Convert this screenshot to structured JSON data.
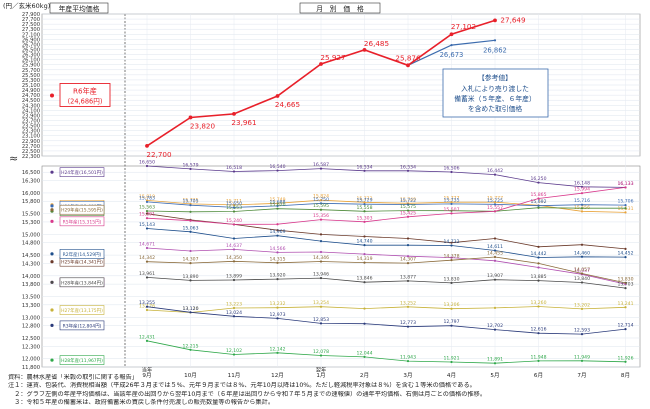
{
  "chart_data": {
    "type": "line",
    "unit_label": "(円／玄米60kg)",
    "left_panel_title": "年産平均価格",
    "main_title": "月　別　価　格",
    "x_axis": [
      {
        "label": "9月",
        "sub": "当年"
      },
      {
        "label": "10月",
        "sub": ""
      },
      {
        "label": "11月",
        "sub": ""
      },
      {
        "label": "12月",
        "sub": ""
      },
      {
        "label": "1月",
        "sub": "翌年"
      },
      {
        "label": "2月",
        "sub": ""
      },
      {
        "label": "3月",
        "sub": ""
      },
      {
        "label": "4月",
        "sub": ""
      },
      {
        "label": "5月",
        "sub": ""
      },
      {
        "label": "6月",
        "sub": ""
      },
      {
        "label": "7月",
        "sub": ""
      },
      {
        "label": "8月",
        "sub": ""
      }
    ],
    "upper_ticks": [
      22300,
      22700,
      23100,
      23500,
      23900,
      24300,
      24700,
      25100,
      25500,
      25900,
      26300,
      26700,
      27100,
      27500,
      27900
    ],
    "upper_ticks_odd": [
      22500,
      22900,
      23300,
      23700,
      24100,
      24500,
      24900,
      25300,
      25700,
      26100,
      26500,
      26900,
      27300,
      27700
    ],
    "lower_ticks": [
      12000,
      12500,
      13000,
      13500,
      14000,
      14500,
      15000,
      15500,
      16000,
      16500
    ],
    "lower_ticks_odd": [
      11800,
      12300,
      12800,
      13300,
      13800,
      14300,
      14800,
      15300,
      15800,
      16300
    ],
    "series_upper": [
      {
        "name": "R6年産",
        "color": "#e8202a",
        "annual": "(24,686円)",
        "annual_value": 24686,
        "values": [
          22700,
          23820,
          23961,
          24665,
          25927,
          26485,
          25876,
          27102,
          27649
        ],
        "labels": [
          "22,700",
          "23,820",
          "23,961",
          "24,665",
          "25,927",
          "26,485",
          "25,876",
          "27,102",
          "27,649"
        ]
      },
      {
        "name": "参考値",
        "color": "#3c6cae",
        "values": [
          null,
          null,
          null,
          null,
          null,
          null,
          25876,
          26673,
          26862
        ],
        "labels": [
          "",
          "",
          "",
          "",
          "",
          "",
          "",
          "26,673",
          "26,862"
        ]
      }
    ],
    "reference_note": {
      "title": "【参考値】",
      "lines": [
        "入札により売り渡した",
        "備蓄米（５年産、６年産）",
        "を含めた取引価格"
      ]
    },
    "series_lower": [
      {
        "name": "H24年産",
        "annual": "(16,501円)",
        "annual_value": 16501,
        "color": "#5b3a8c",
        "values": [
          16650,
          16579,
          16518,
          16540,
          16587,
          16534,
          16534,
          16506,
          16442,
          16250,
          16148,
          16133
        ],
        "labels": [
          "16,650",
          "16,579",
          "16,518",
          "16,540",
          "16,587",
          "16,534",
          "16,534",
          "16,506",
          "16,442",
          "16,250",
          "16,148",
          "16,133"
        ]
      },
      {
        "name": "R6年産",
        "annual": "(15,713円)",
        "annual_value": 15713,
        "color": "#e8a33a",
        "values": [
          15819,
          15735,
          15711,
          15749,
          15824,
          15773,
          15749,
          15777,
          15777,
          15702,
          15556,
          15531
        ],
        "labels": [
          "15,819",
          "15,735",
          "15,711",
          "15,749",
          "15,824",
          "15,773",
          "15,749",
          "15,777",
          "15,777",
          "15,702",
          "15,556",
          "15,531"
        ]
      },
      {
        "name": "H30年産",
        "annual": "(15,688円)",
        "annual_value": 15688,
        "color": "#3b6bb3",
        "values": [
          15783,
          15705,
          15650,
          15688,
          15750,
          15729,
          15722,
          15735,
          15725,
          15692,
          15716,
          15706
        ],
        "labels": [
          "15,783",
          "15,705",
          "15,650",
          "15,688",
          "15,750",
          "15,729",
          "15,722",
          "15,735",
          "15,725",
          "15,692",
          "15,716",
          "15,706"
        ]
      },
      {
        "name": "H25年産",
        "annual": "(14,341円)",
        "annual_value": 14341,
        "color": "#6b3a2a",
        "values": [
          15500,
          15350,
          15240,
          15100,
          15000,
          14950,
          14900,
          14800,
          14900,
          14700,
          14750,
          14650
        ],
        "labels": [
          "",
          "",
          "",
          "",
          "",
          "",
          "",
          "",
          "",
          "",
          "",
          ""
        ]
      },
      {
        "name": "H26年産",
        "annual": "(15,560円)",
        "annual_value": 15560,
        "color": "#4d8a3a",
        "values": [
          15563,
          15545,
          15553,
          15620,
          15595,
          15558,
          15575,
          15571,
          15557,
          15643,
          15631,
          15631
        ],
        "labels": [
          "15,563",
          "",
          "15,553",
          "15,620",
          "15,595",
          "15,558",
          "15,575",
          "",
          "",
          "",
          "",
          ""
        ]
      },
      {
        "name": "R5年産",
        "annual": "(15,315円)",
        "annual_value": 15315,
        "color": "#d83a8c",
        "values": [
          15391,
          15330,
          15240,
          15245,
          15356,
          15303,
          15425,
          15507,
          15557,
          15865,
          15994,
          16133
        ],
        "labels": [
          "15,391",
          "",
          "15,240",
          "",
          "15,356",
          "15,303",
          "15,425",
          "15,507",
          "15,557",
          "15,865",
          "15,994",
          "16,133"
        ]
      },
      {
        "name": "R2年産",
        "annual": "(14,529円)",
        "annual_value": 14529,
        "color": "#1f4f8c",
        "values": [
          15143,
          15063,
          14900,
          14969,
          14837,
          14740,
          14740,
          14732,
          14611,
          14442,
          14460,
          14452
        ],
        "labels": [
          "15,143",
          "15,063",
          "",
          "14,969",
          "",
          "14,740",
          "",
          "14,732",
          "14,611",
          "14,442",
          "14,460",
          "14,452"
        ]
      },
      {
        "name": "R4年産",
        "annual": "(13,844円)",
        "annual_value": 13844,
        "color": "#b04fb0",
        "values": [
          14671,
          14600,
          14637,
          14566,
          14574,
          14524,
          14473,
          14440,
          14363,
          14200,
          14037,
          13800
        ],
        "labels": [
          "14,671",
          "",
          "14,637",
          "14,566",
          "",
          "",
          "",
          "",
          "",
          "",
          "14,037",
          ""
        ]
      },
      {
        "name": "H29年産",
        "annual": "(15,595円)",
        "annual_value": 15595,
        "color": "#8a6a3a",
        "values": [
          14342,
          14307,
          14350,
          14315,
          14346,
          14319,
          14307,
          14378,
          14455,
          14300,
          14057,
          13830
        ],
        "labels": [
          "14,342",
          "14,307",
          "14,350",
          "14,315",
          "14,346",
          "14,319",
          "14,307",
          "14,378",
          "14,455",
          "",
          "14,057",
          "13,830"
        ]
      },
      {
        "name": "H27年産",
        "annual": "(13,175円)",
        "annual_value": 13175,
        "color": "#c7b23a",
        "values": [
          13176,
          13116,
          13223,
          13232,
          13254,
          13210,
          13252,
          13206,
          13226,
          13260,
          13202,
          13241
        ],
        "labels": [
          "13,176",
          "13,116",
          "13,223",
          "13,232",
          "13,254",
          "",
          "13,252",
          "13,206",
          "",
          "13,260",
          "13,202",
          "13,241"
        ]
      },
      {
        "name": "H28年産",
        "annual": "(13,844円)",
        "annual_value": 13844,
        "color": "#4a4a4a",
        "values": [
          13961,
          13890,
          13899,
          13920,
          13946,
          13846,
          13877,
          13830,
          13907,
          13885,
          13840,
          13703
        ],
        "labels": [
          "13,961",
          "13,890",
          "13,899",
          "13,920",
          "13,946",
          "13,846",
          "13,877",
          "13,830",
          "13,907",
          "13,885",
          "13,840",
          "13,703"
        ]
      },
      {
        "name": "R3年産",
        "annual": "(12,804円)",
        "annual_value": 12804,
        "color": "#2a3a7a",
        "values": [
          13255,
          13120,
          13024,
          12973,
          12853,
          12845,
          12773,
          12797,
          12702,
          12616,
          12593,
          12714
        ],
        "labels": [
          "13,255",
          "13,120",
          "13,024",
          "12,973",
          "12,853",
          "",
          "12,773",
          "12,797",
          "12,702",
          "12,616",
          "12,593",
          "12,714"
        ]
      },
      {
        "name": "H28年産",
        "annual": "(11,967円)",
        "annual_value": 11967,
        "color": "#2fa84a",
        "values": [
          12431,
          12215,
          12102,
          12142,
          12078,
          12044,
          11943,
          11921,
          11891,
          11948,
          11949,
          11926
        ],
        "labels": [
          "12,431",
          "12,215",
          "12,102",
          "12,142",
          "12,078",
          "12,044",
          "11,943",
          "11,921",
          "11,891",
          "11,948",
          "11,949",
          "11,926"
        ]
      }
    ]
  },
  "notes": [
    "資料：農林水産省「米穀の取引に関する報告」",
    "注１：運賃、包装代、消費税相当額（平成26年３月までは５%、元年９月までは８%、元年10月以降は10%。ただし軽減税率対象は８%）を含む１等米の価格である。",
    "　２：グラフ左側の年産平均価格は、当該年産の出回りから翌年10月まで（６年産は出回りから令和７年５月までの速報値）の通年平均価格、右側は月ごとの価格の推移。",
    "　３：令和５年産の備蓄米は、政府備蓄米の買戻し条件付売渡しの販売数量等の報告から集計。"
  ]
}
